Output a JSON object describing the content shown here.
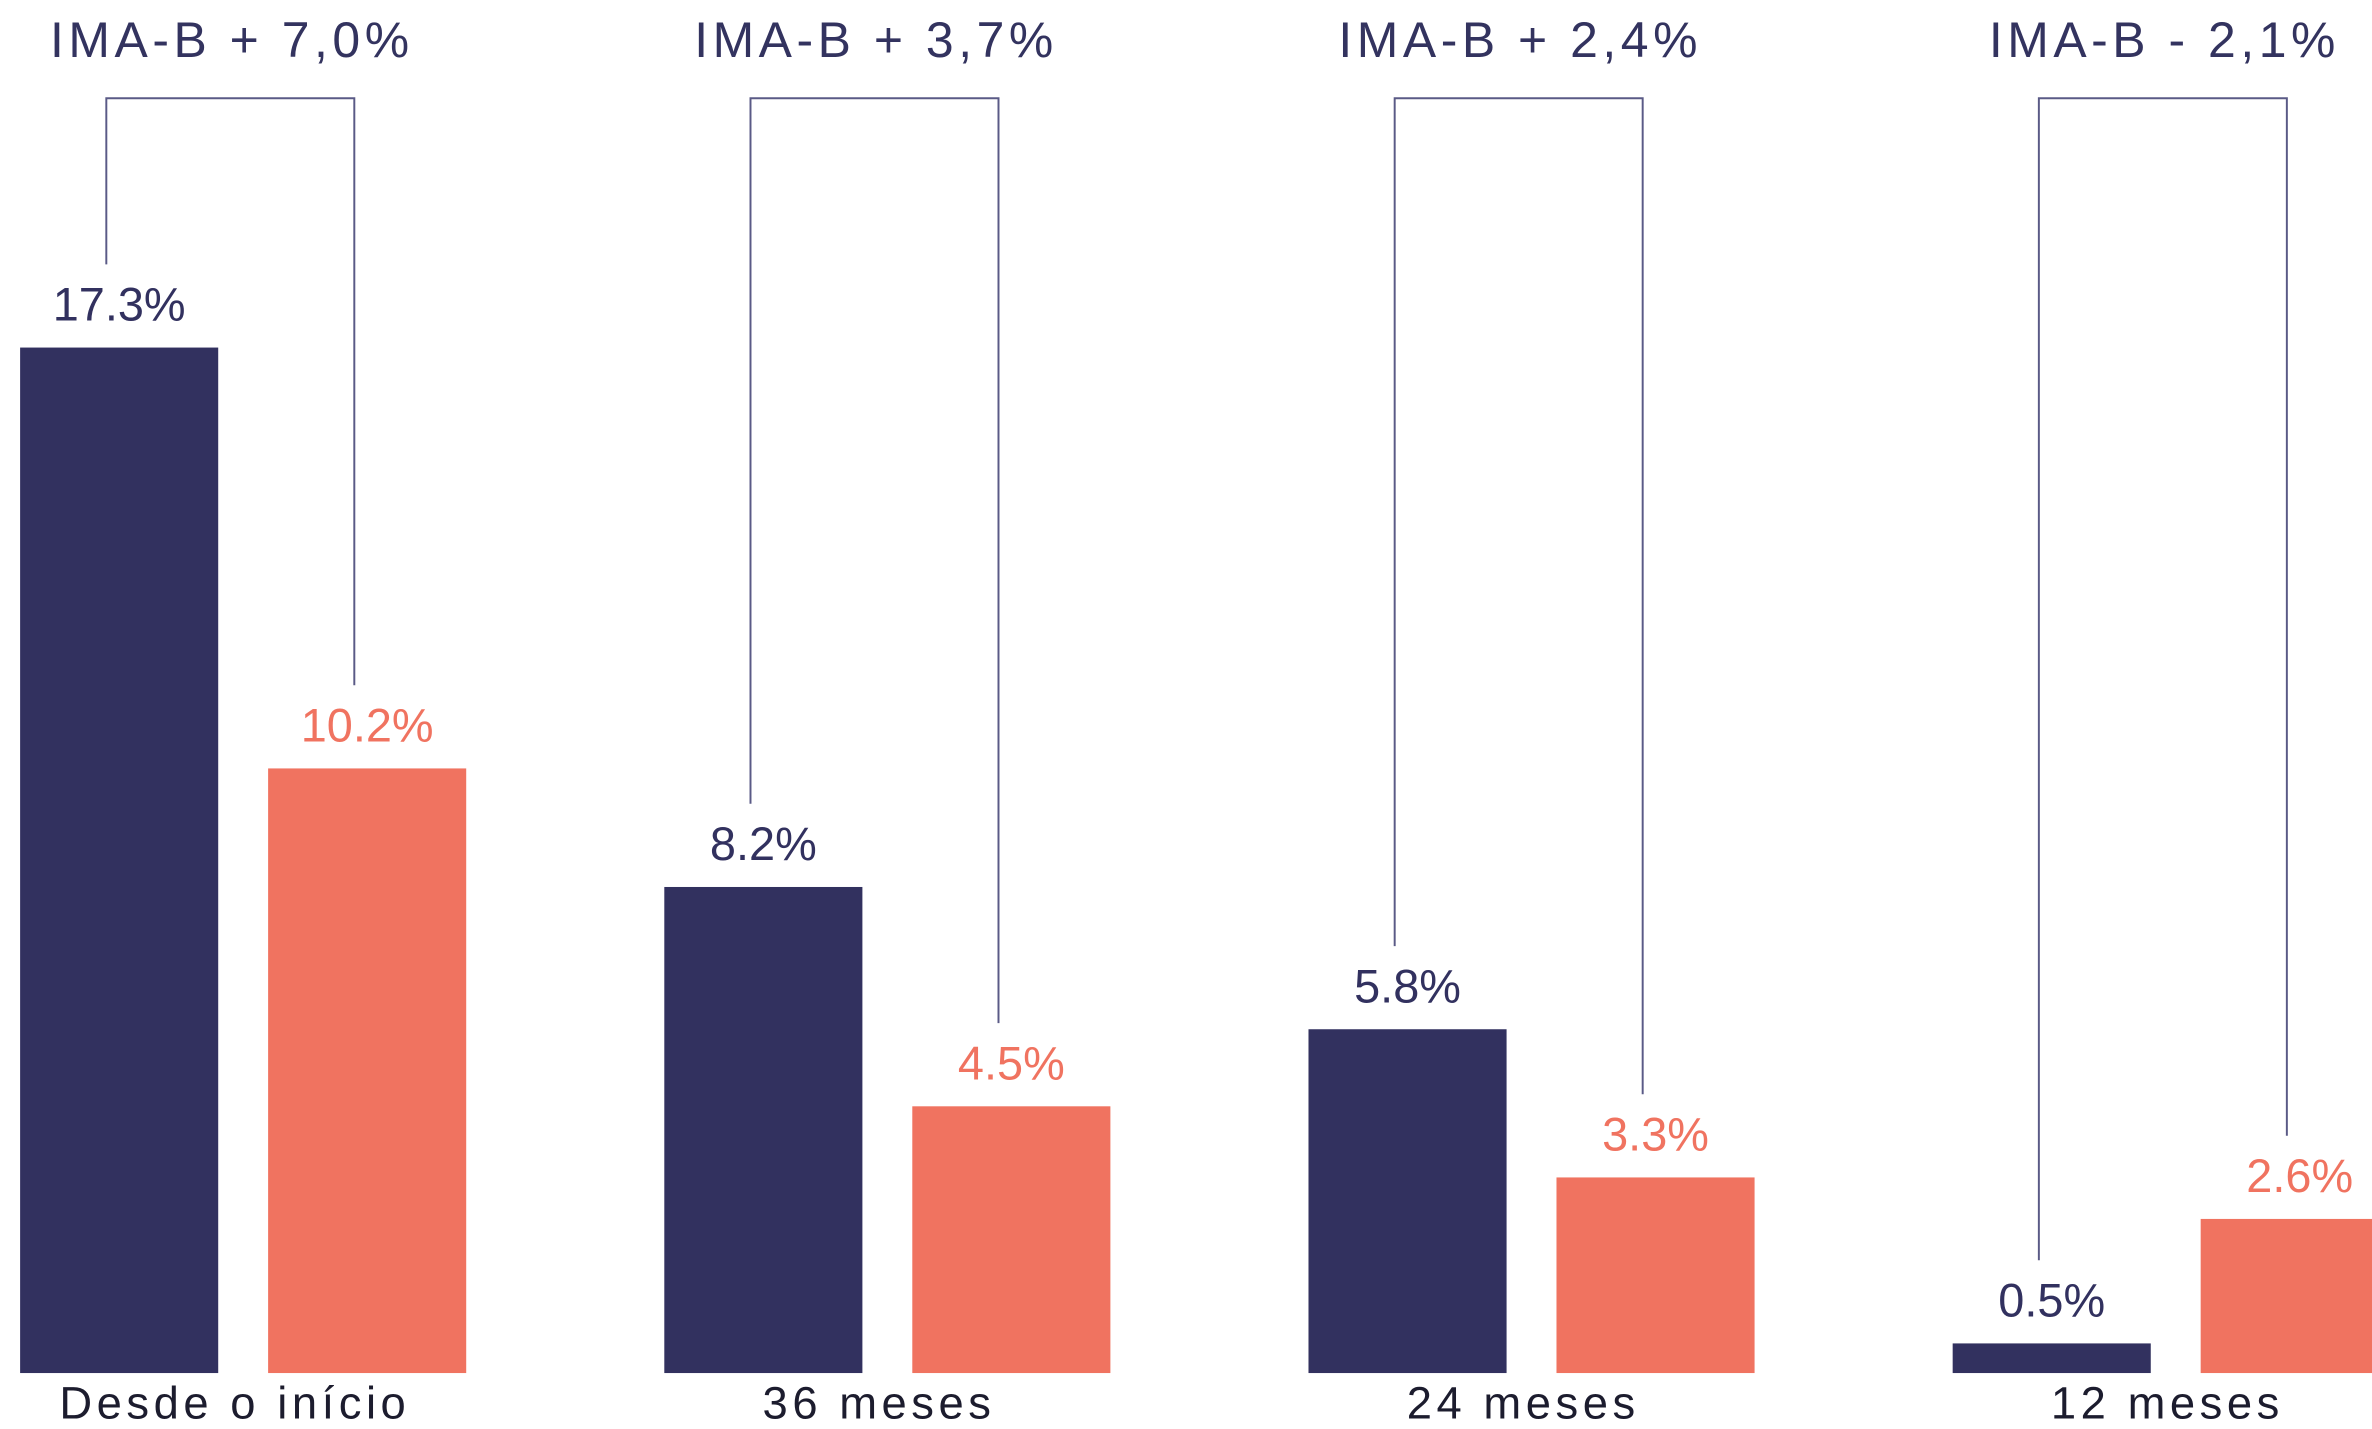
{
  "chart_data": {
    "type": "bar",
    "categories": [
      "Desde o início",
      "36 meses",
      "24 meses",
      "12 meses"
    ],
    "annotations": [
      "IMA-B + 7,0%",
      "IMA-B + 3,7%",
      "IMA-B + 2,4%",
      "IMA-B - 2,1%"
    ],
    "series": [
      {
        "color": "#32315f",
        "values": [
          17.3,
          8.2,
          5.8,
          0.5
        ],
        "value_labels": [
          "17.3%",
          "8.2%",
          "5.8%",
          "0.5%"
        ]
      },
      {
        "color": "#f07360",
        "values": [
          10.2,
          4.5,
          3.3,
          2.6
        ],
        "value_labels": [
          "10.2%",
          "4.5%",
          "3.3%",
          "2.6%"
        ]
      }
    ]
  }
}
